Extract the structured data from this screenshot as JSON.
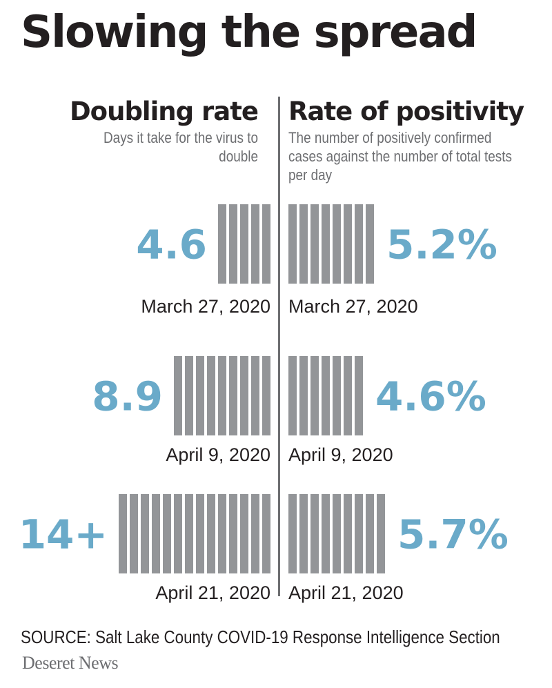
{
  "chart_data": {
    "type": "bar",
    "title": "Slowing the spread",
    "source": "SOURCE: Salt Lake County COVID-19 Response Intelligence Section",
    "brand": "Deseret News",
    "colors": {
      "value": "#6aaac9",
      "bar": "#939598",
      "divider": "#6d6e71",
      "text": "#231f20"
    },
    "panels": [
      {
        "name": "Doubling rate",
        "description": "Days it take for the virus to double",
        "side": "left",
        "categories": [
          "March 27, 2020",
          "April 9, 2020",
          "April 21, 2020"
        ],
        "values": [
          4.6,
          8.9,
          14
        ],
        "labels": [
          "4.6",
          "8.9",
          "14+"
        ]
      },
      {
        "name": "Rate of positivity",
        "description": "The number of positively confirmed cases against the number of total tests per day",
        "side": "right",
        "categories": [
          "March 27, 2020",
          "April 9, 2020",
          "April 21, 2020"
        ],
        "values": [
          5.2,
          4.6,
          5.7
        ],
        "labels": [
          "5.2%",
          "4.6%",
          "5.7%"
        ]
      }
    ]
  }
}
